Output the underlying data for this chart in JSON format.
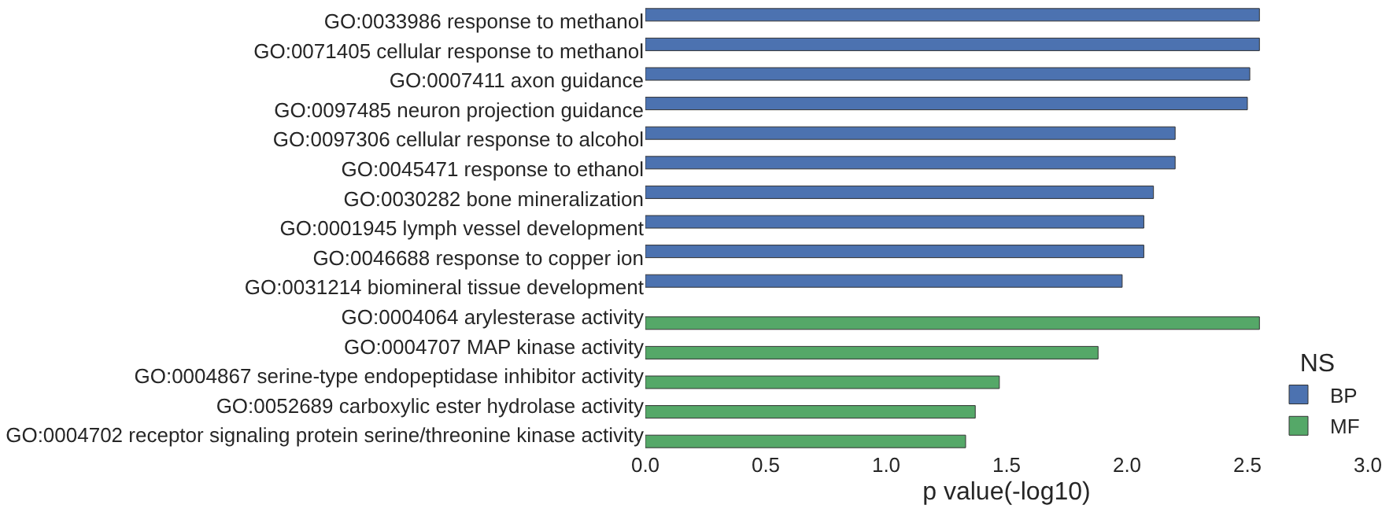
{
  "chart_data": {
    "type": "bar",
    "orientation": "horizontal",
    "xlabel": "p value(-log10)",
    "legend_title": "NS",
    "legend": "bottom right",
    "grid": false,
    "categories": [
      "GO:0033986 response to methanol",
      "GO:0071405 cellular response to methanol",
      "GO:0007411 axon guidance",
      "GO:0097485 neuron projection guidance",
      "GO:0097306 cellular response to alcohol",
      "GO:0045471 response to ethanol",
      "GO:0030282 bone mineralization",
      "GO:0001945 lymph vessel development",
      "GO:0046688 response to copper ion",
      "GO:0031214 biomineral tissue development",
      "GO:0004064 arylesterase activity",
      "GO:0004707 MAP kinase activity",
      "GO:0004867 serine-type endopeptidase inhibitor activity",
      "GO:0052689 carboxylic ester hydrolase activity",
      "GO:0004702 receptor signaling protein serine/threonine kinase activity"
    ],
    "series": [
      {
        "name": "BP",
        "color": "#4c72b0",
        "values": [
          2.55,
          2.55,
          2.51,
          2.5,
          2.2,
          2.2,
          2.11,
          2.07,
          2.07,
          1.98,
          null,
          null,
          null,
          null,
          null
        ]
      },
      {
        "name": "MF",
        "color": "#55a868",
        "values": [
          null,
          null,
          null,
          null,
          null,
          null,
          null,
          null,
          null,
          null,
          2.55,
          1.88,
          1.47,
          1.37,
          1.33
        ]
      }
    ],
    "xlim": [
      0,
      3
    ],
    "xticks": [
      {
        "value": 0,
        "label": "0.0"
      },
      {
        "value": 0.5,
        "label": "0.5"
      },
      {
        "value": 1,
        "label": "1.0"
      },
      {
        "value": 1.5,
        "label": "1.5"
      },
      {
        "value": 2,
        "label": "2.0"
      },
      {
        "value": 2.5,
        "label": "2.5"
      },
      {
        "value": 3,
        "label": "3.0"
      }
    ]
  }
}
